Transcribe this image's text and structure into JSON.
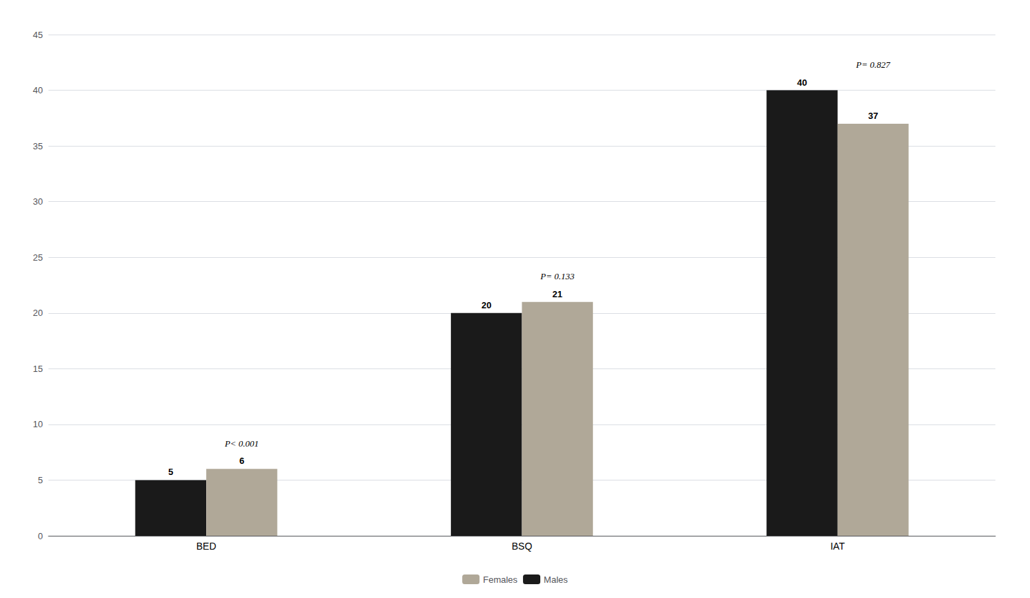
{
  "chart_data": {
    "type": "bar",
    "categories": [
      "BED",
      "BSQ",
      "IAT"
    ],
    "series": [
      {
        "name": "Males",
        "color": "#1a1a1a",
        "values": [
          5,
          20,
          40
        ]
      },
      {
        "name": "Females",
        "color": "#b0a898",
        "values": [
          6,
          21,
          37
        ]
      }
    ],
    "annotations": [
      "P< 0.001",
      "P= 0.133",
      "P= 0.827"
    ],
    "ylim": [
      0,
      45
    ],
    "yticks": [
      0,
      5,
      10,
      15,
      20,
      25,
      30,
      35,
      40,
      45
    ],
    "grid": true,
    "legend": "bottom",
    "data_labels": true
  }
}
